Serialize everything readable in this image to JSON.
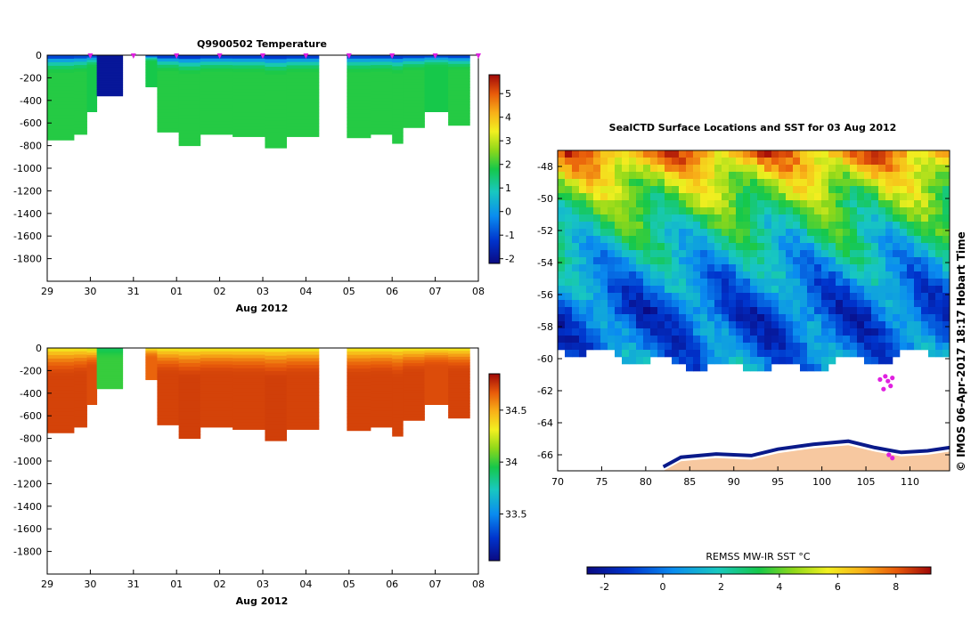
{
  "chart_data": [
    {
      "type": "heatmap",
      "title": "Q9900502  Temperature",
      "xlabel": "Aug 2012",
      "x_ticks": [
        "29",
        "30",
        "31",
        "01",
        "02",
        "03",
        "04",
        "05",
        "06",
        "07",
        "08"
      ],
      "y_ticks": [
        "0",
        "-200",
        "-400",
        "-600",
        "-800",
        "-1000",
        "-1200",
        "-1400",
        "-1600",
        "-1800"
      ],
      "ylim": [
        -2000,
        0
      ],
      "xlim_days": [
        0,
        10
      ],
      "colorbar_ticks": [
        "-2",
        "-1",
        "0",
        "1",
        "2",
        "3",
        "4",
        "5"
      ],
      "colorbar_range": [
        -2.2,
        5.8
      ],
      "profiles": [
        {
          "start": 0.0,
          "end": 0.62,
          "depth": 750,
          "top": -1.7,
          "deep": 1.9
        },
        {
          "start": 0.62,
          "end": 0.92,
          "depth": 700,
          "top": -1.6,
          "deep": 1.9
        },
        {
          "start": 0.92,
          "end": 1.15,
          "depth": 500,
          "top": -1.6,
          "deep": 1.8
        },
        {
          "start": 1.15,
          "end": 1.75,
          "depth": 360,
          "top": -1.9,
          "deep": -1.9
        },
        {
          "start": 2.28,
          "end": 2.55,
          "depth": 280,
          "top": -1.8,
          "deep": 1.8
        },
        {
          "start": 2.55,
          "end": 3.05,
          "depth": 680,
          "top": -1.8,
          "deep": 1.9
        },
        {
          "start": 3.05,
          "end": 3.55,
          "depth": 800,
          "top": -1.9,
          "deep": 1.9
        },
        {
          "start": 3.55,
          "end": 4.3,
          "depth": 700,
          "top": -1.8,
          "deep": 1.9
        },
        {
          "start": 4.3,
          "end": 5.05,
          "depth": 720,
          "top": -1.8,
          "deep": 1.9
        },
        {
          "start": 5.05,
          "end": 5.55,
          "depth": 820,
          "top": -1.9,
          "deep": 1.9
        },
        {
          "start": 5.55,
          "end": 6.3,
          "depth": 720,
          "top": -1.8,
          "deep": 1.9
        },
        {
          "start": 6.95,
          "end": 7.5,
          "depth": 730,
          "top": -1.6,
          "deep": 1.9
        },
        {
          "start": 7.5,
          "end": 8.0,
          "depth": 700,
          "top": -1.7,
          "deep": 1.9
        },
        {
          "start": 8.0,
          "end": 8.25,
          "depth": 780,
          "top": -1.8,
          "deep": 1.9
        },
        {
          "start": 8.25,
          "end": 8.75,
          "depth": 640,
          "top": -1.7,
          "deep": 1.9
        },
        {
          "start": 8.75,
          "end": 9.3,
          "depth": 500,
          "top": -1.6,
          "deep": 1.8
        },
        {
          "start": 9.3,
          "end": 9.8,
          "depth": 620,
          "top": -1.7,
          "deep": 1.9
        }
      ],
      "surface_markers_days": [
        1.0,
        2.0,
        3.0,
        4.0,
        5.0,
        6.0,
        7.0,
        8.0,
        9.0,
        10.0
      ]
    },
    {
      "type": "heatmap",
      "title": "",
      "xlabel": "Aug 2012",
      "x_ticks": [
        "29",
        "30",
        "31",
        "01",
        "02",
        "03",
        "04",
        "05",
        "06",
        "07",
        "08"
      ],
      "y_ticks": [
        "0",
        "-200",
        "-400",
        "-600",
        "-800",
        "-1000",
        "-1200",
        "-1400",
        "-1600",
        "-1800"
      ],
      "ylim": [
        -2000,
        0
      ],
      "colorbar_ticks": [
        "33.5",
        "34",
        "34.5"
      ],
      "colorbar_range": [
        33.05,
        34.85
      ],
      "profiles": [
        {
          "start": 0.0,
          "end": 0.62,
          "depth": 750,
          "top": 34.3,
          "deep": 34.72
        },
        {
          "start": 0.62,
          "end": 0.92,
          "depth": 700,
          "top": 34.3,
          "deep": 34.72
        },
        {
          "start": 0.92,
          "end": 1.15,
          "depth": 500,
          "top": 34.2,
          "deep": 34.7
        },
        {
          "start": 1.15,
          "end": 1.75,
          "depth": 360,
          "top": 33.9,
          "deep": 34.0
        },
        {
          "start": 2.28,
          "end": 2.55,
          "depth": 280,
          "top": 34.3,
          "deep": 34.65
        },
        {
          "start": 2.55,
          "end": 3.05,
          "depth": 680,
          "top": 34.3,
          "deep": 34.72
        },
        {
          "start": 3.05,
          "end": 3.55,
          "depth": 800,
          "top": 34.3,
          "deep": 34.73
        },
        {
          "start": 3.55,
          "end": 4.3,
          "depth": 700,
          "top": 34.3,
          "deep": 34.72
        },
        {
          "start": 4.3,
          "end": 5.05,
          "depth": 720,
          "top": 34.3,
          "deep": 34.72
        },
        {
          "start": 5.05,
          "end": 5.55,
          "depth": 820,
          "top": 34.3,
          "deep": 34.73
        },
        {
          "start": 5.55,
          "end": 6.3,
          "depth": 720,
          "top": 34.3,
          "deep": 34.72
        },
        {
          "start": 6.95,
          "end": 7.5,
          "depth": 730,
          "top": 34.3,
          "deep": 34.72
        },
        {
          "start": 7.5,
          "end": 8.0,
          "depth": 700,
          "top": 34.3,
          "deep": 34.72
        },
        {
          "start": 8.0,
          "end": 8.25,
          "depth": 780,
          "top": 34.3,
          "deep": 34.72
        },
        {
          "start": 8.25,
          "end": 8.75,
          "depth": 640,
          "top": 34.3,
          "deep": 34.72
        },
        {
          "start": 8.75,
          "end": 9.3,
          "depth": 500,
          "top": 34.3,
          "deep": 34.7
        },
        {
          "start": 9.3,
          "end": 9.8,
          "depth": 620,
          "top": 34.3,
          "deep": 34.72
        }
      ]
    },
    {
      "type": "heatmap",
      "title": "SealCTD Surface Locations and SST for 03 Aug 2012",
      "x_ticks": [
        "70",
        "75",
        "80",
        "85",
        "90",
        "95",
        "100",
        "105",
        "110"
      ],
      "y_ticks": [
        "-48",
        "-50",
        "-52",
        "-54",
        "-56",
        "-58",
        "-60",
        "-62",
        "-64",
        "-66"
      ],
      "xlim": [
        70,
        114.5
      ],
      "ylim": [
        -67,
        -47
      ],
      "colorbar_label": "REMSS MW-IR SST °C",
      "colorbar_ticks": [
        "-2",
        "0",
        "2",
        "4",
        "6",
        "8"
      ],
      "colorbar_range": [
        -2.6,
        9.2
      ],
      "sst_by_latitude": [
        {
          "lat": -47,
          "sst": 7.5
        },
        {
          "lat": -49,
          "sst": 5.0
        },
        {
          "lat": -51,
          "sst": 3.2
        },
        {
          "lat": -53,
          "sst": 1.8
        },
        {
          "lat": -55,
          "sst": 0.5
        },
        {
          "lat": -57,
          "sst": -0.6
        },
        {
          "lat": -59,
          "sst": -0.3
        },
        {
          "lat": -60,
          "sst": 0.2
        }
      ],
      "seal_track_points": [
        {
          "lon": 107.2,
          "lat": -61.1
        },
        {
          "lon": 107.5,
          "lat": -61.4
        },
        {
          "lon": 108.0,
          "lat": -61.2
        },
        {
          "lon": 106.6,
          "lat": -61.3
        },
        {
          "lon": 107.8,
          "lat": -61.7
        },
        {
          "lon": 107.0,
          "lat": -61.9
        },
        {
          "lon": 107.6,
          "lat": -66.0
        },
        {
          "lon": 108.0,
          "lat": -66.2
        }
      ],
      "land_color": "#f7c8a0",
      "ice_edge_color": "#0a1a8a"
    }
  ],
  "side_note": "© IMOS 06-Apr-2017 18:17 Hobart Time"
}
